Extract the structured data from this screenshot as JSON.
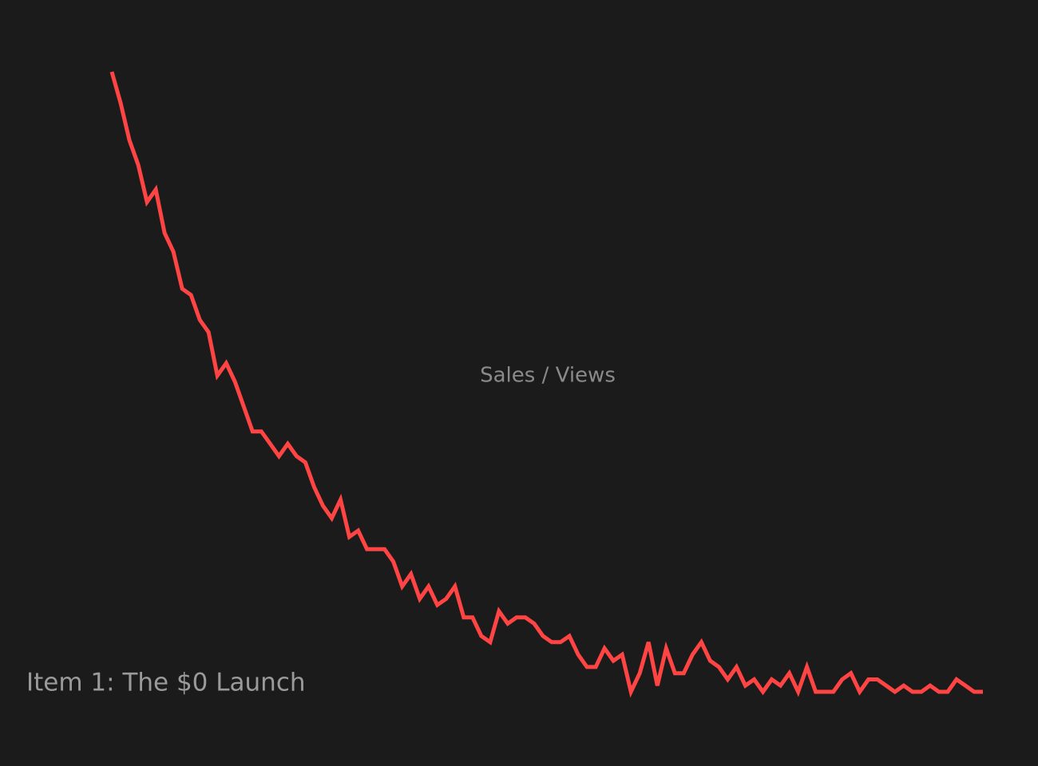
{
  "chart_data": {
    "type": "line",
    "title": "Item 1: The $0 Launch",
    "label": "Sales / Views",
    "x": [
      1,
      2,
      3,
      4,
      5,
      6,
      7,
      8,
      9,
      10,
      11,
      12,
      13,
      14,
      15,
      16,
      17,
      18,
      19,
      20,
      21,
      22,
      23,
      24,
      25,
      26,
      27,
      28,
      29,
      30,
      31,
      32,
      33,
      34,
      35,
      36,
      37,
      38,
      39,
      40,
      41,
      42,
      43,
      44,
      45,
      46,
      47,
      48,
      49,
      50,
      51,
      52,
      53,
      54,
      55,
      56,
      57,
      58,
      59,
      60,
      61,
      62,
      63,
      64,
      65,
      66,
      67,
      68,
      69,
      70,
      71,
      72,
      73,
      74,
      75,
      76,
      77,
      78,
      79,
      80,
      81,
      82,
      83,
      84,
      85,
      86,
      87,
      88,
      89,
      90,
      91,
      92,
      93,
      94,
      95,
      96,
      97,
      98,
      99,
      100
    ],
    "values": [
      100,
      95,
      89,
      85,
      79,
      81,
      74,
      71,
      65,
      64,
      60,
      58,
      51,
      53,
      50,
      46,
      42,
      42,
      40,
      38,
      40,
      38,
      37,
      33,
      30,
      28,
      31,
      25,
      26,
      23,
      23,
      23,
      21,
      17,
      19,
      15,
      17,
      14,
      15,
      17,
      12,
      12,
      9,
      8,
      13,
      11,
      12,
      12,
      11,
      9,
      8,
      8,
      9,
      6,
      4,
      4,
      7,
      5,
      6,
      0,
      3,
      8,
      1,
      7,
      3,
      3,
      6,
      8,
      5,
      4,
      2,
      4,
      1,
      2,
      0,
      2,
      1,
      3,
      0,
      4,
      0,
      0,
      0,
      2,
      3,
      0,
      2,
      2,
      1,
      0,
      1,
      0,
      0,
      1,
      0,
      0,
      2,
      1,
      0,
      0
    ],
    "color": "#ff4444",
    "xlim": [
      1,
      100
    ],
    "ylim": [
      0,
      100
    ]
  }
}
